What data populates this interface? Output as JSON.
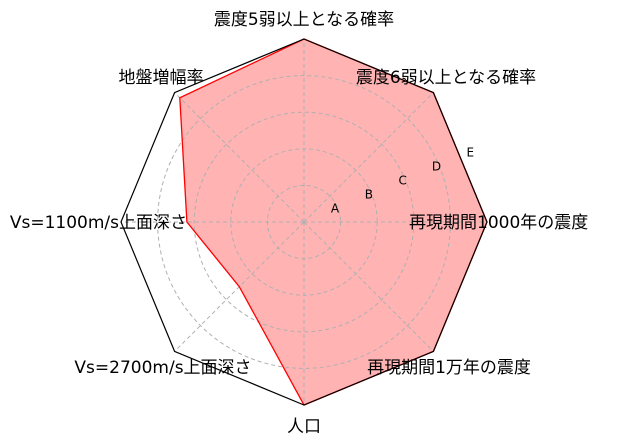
{
  "chart_data": {
    "type": "radar",
    "axes": [
      "震度5弱以上となる確率",
      "震度6弱以上となる確率",
      "再現期間1000年の震度",
      "再現期間1万年の震度",
      "人口",
      "Vs=2700m/s上面深さ",
      "Vs=1100m/s上面深さ",
      "地盤増幅率"
    ],
    "rank_labels": [
      "A",
      "B",
      "C",
      "D",
      "E"
    ],
    "range": [
      0,
      5
    ],
    "grid": true,
    "series": [
      {
        "values": [
          5,
          5,
          5,
          5,
          5,
          2.5,
          3.2,
          4.8
        ],
        "fill_color": "#ffb3b3",
        "line_color": "#ff0000"
      }
    ],
    "frame_color": "#000000",
    "grid_color": "#b0b0b0"
  }
}
